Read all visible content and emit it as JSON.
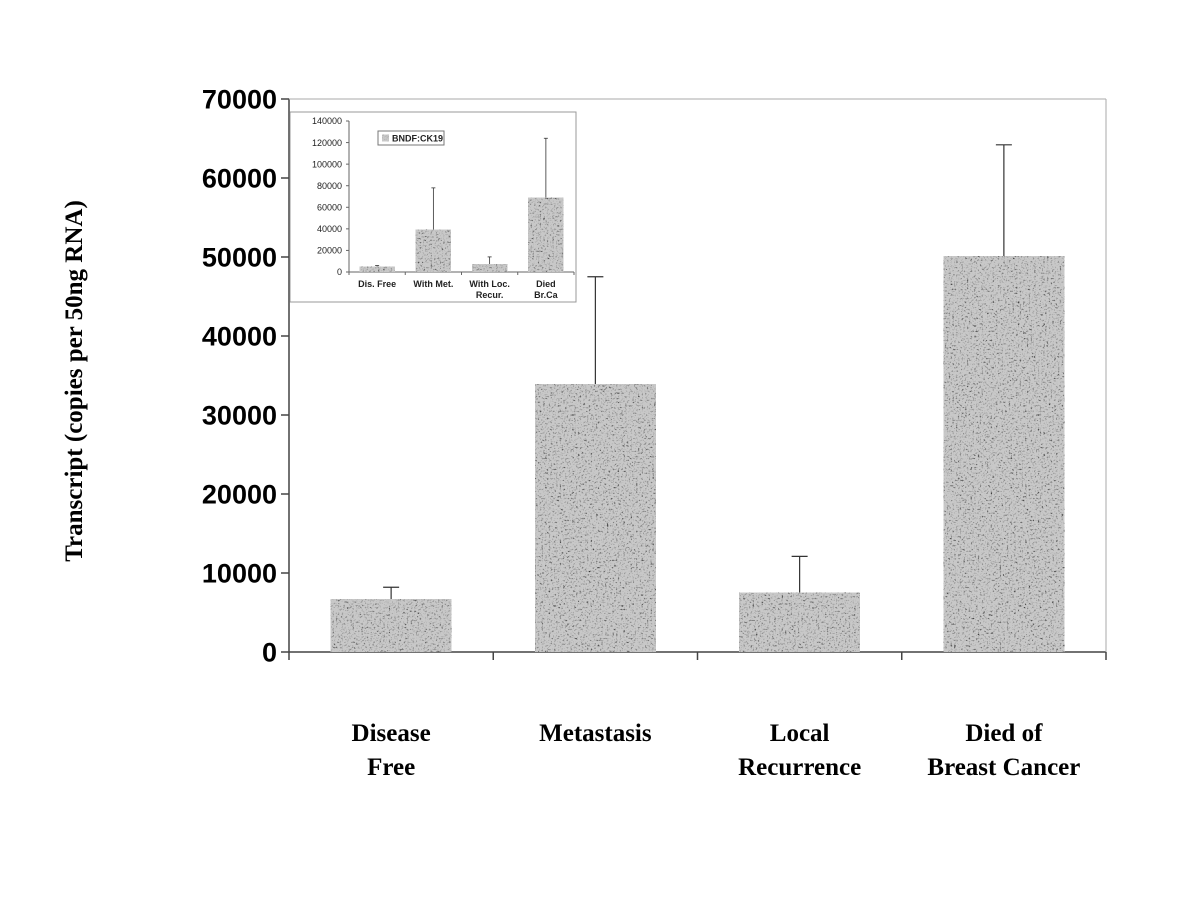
{
  "chart_data": [
    {
      "type": "bar",
      "title": "",
      "xlabel": "",
      "ylabel": "Transcript (copies per 50ng RNA)",
      "ylim": [
        0,
        70000
      ],
      "yticks": [
        "0",
        "10000",
        "20000",
        "30000",
        "40000",
        "50000",
        "60000",
        "70000"
      ],
      "categories": [
        [
          "Disease",
          "Free"
        ],
        [
          "Metastasis"
        ],
        [
          "Local",
          "Recurrence"
        ],
        [
          "Died of",
          "Breast Cancer"
        ]
      ],
      "values": [
        6700,
        33900,
        7500,
        50100
      ],
      "error_upper": [
        8200,
        47500,
        12100,
        64200
      ],
      "grid": false
    },
    {
      "type": "bar",
      "title": "",
      "legend": [
        "BNDF:CK19"
      ],
      "legend_position": "top-left",
      "ylim": [
        0,
        140000
      ],
      "yticks": [
        "0",
        "20000",
        "40000",
        "60000",
        "80000",
        "100000",
        "120000",
        "140000"
      ],
      "categories": [
        [
          "Dis. Free"
        ],
        [
          "With Met."
        ],
        [
          "With Loc.",
          "Recur."
        ],
        [
          "Died",
          "Br.Ca"
        ]
      ],
      "values": [
        5000,
        39000,
        7000,
        69000
      ],
      "error_upper": [
        6000,
        78000,
        14000,
        124000
      ],
      "grid": false
    }
  ]
}
